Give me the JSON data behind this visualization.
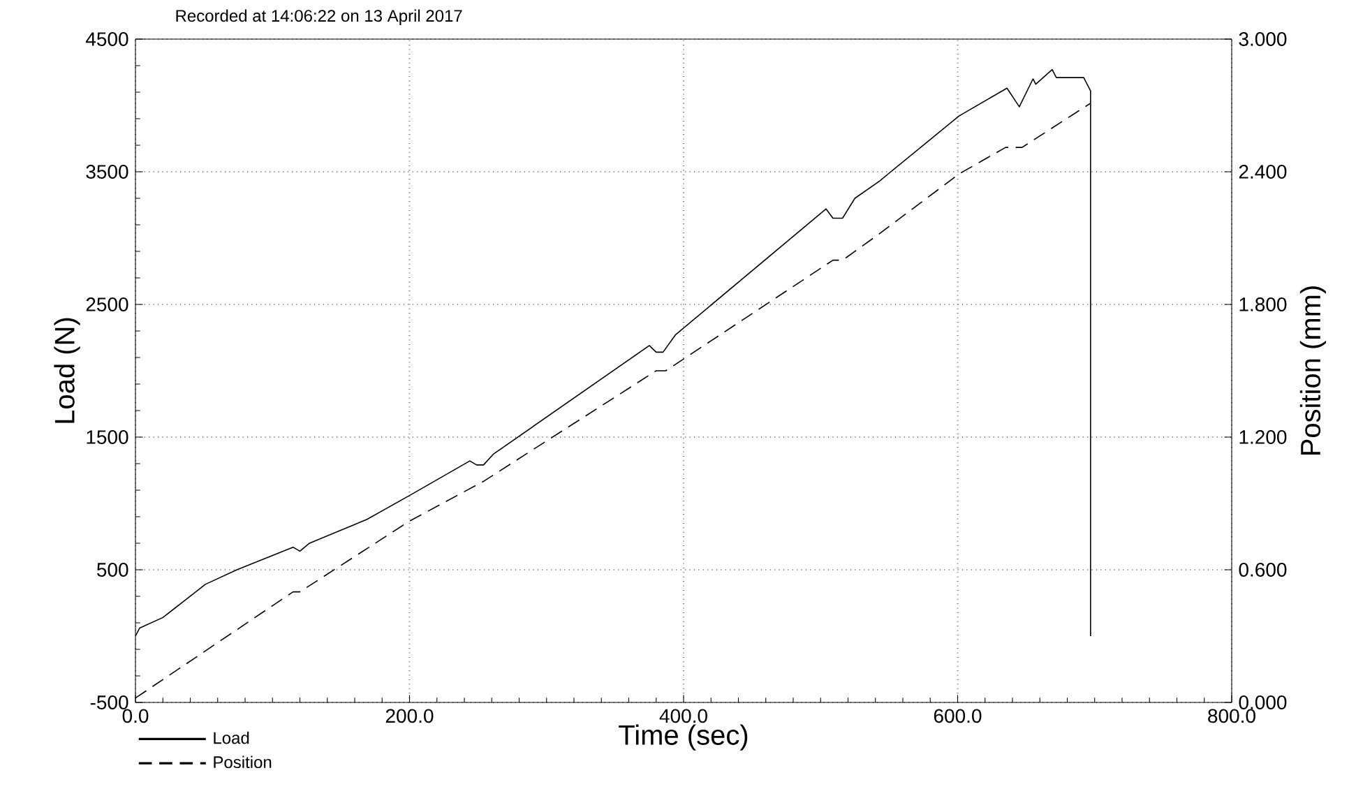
{
  "chart_data": {
    "type": "line",
    "title": "Recorded at 14:06:22 on 13 April 2017",
    "xlabel": "Time (sec)",
    "ylabel": "Load (N)",
    "y2label": "Position (mm)",
    "xlim": [
      0,
      800
    ],
    "xticks": [
      {
        "value": 0,
        "label": "0.0"
      },
      {
        "value": 200,
        "label": "200.0"
      },
      {
        "value": 400,
        "label": "400.0"
      },
      {
        "value": 600,
        "label": "600.0"
      },
      {
        "value": 800,
        "label": "800.0"
      }
    ],
    "ylim": [
      -500,
      4500
    ],
    "yticks": [
      -500,
      500,
      1500,
      2500,
      3500,
      4500
    ],
    "y2lim": [
      0,
      3
    ],
    "y2ticks": [
      {
        "value": 0,
        "label": "0.000"
      },
      {
        "value": 0.6,
        "label": "0.600"
      },
      {
        "value": 1.2,
        "label": "1.200"
      },
      {
        "value": 1.8,
        "label": "1.800"
      },
      {
        "value": 2.4,
        "label": "2.400"
      },
      {
        "value": 3,
        "label": "3.000"
      }
    ],
    "grid": true,
    "legend": "bottom left",
    "series": [
      {
        "name": "Load",
        "color": "#000000",
        "line_style": "solid",
        "x": [
          0,
          3,
          20,
          51,
          74,
          115,
          120,
          127,
          169,
          200,
          244,
          249,
          254,
          261,
          375,
          380,
          385,
          394,
          504,
          509,
          516,
          525,
          543,
          601,
          636,
          645,
          655,
          657,
          669,
          672,
          692,
          697,
          697
        ],
        "values": [
          0,
          60,
          140,
          390,
          500,
          670,
          640,
          700,
          880,
          1060,
          1320,
          1290,
          1290,
          1370,
          2190,
          2140,
          2140,
          2270,
          3220,
          3150,
          3150,
          3300,
          3430,
          3920,
          4130,
          3990,
          4200,
          4160,
          4270,
          4210,
          4210,
          4110,
          0
        ]
      },
      {
        "name": "Position",
        "color": "#000000",
        "line_style": "dashed",
        "axis": "y2",
        "x": [
          0,
          115,
          120,
          200,
          254,
          380,
          387,
          509,
          516,
          543,
          601,
          635,
          647,
          697
        ],
        "values": [
          0.02,
          0.5,
          0.5,
          0.82,
          1.0,
          1.5,
          1.5,
          2.0,
          2.0,
          2.12,
          2.39,
          2.51,
          2.51,
          2.71
        ]
      }
    ]
  }
}
